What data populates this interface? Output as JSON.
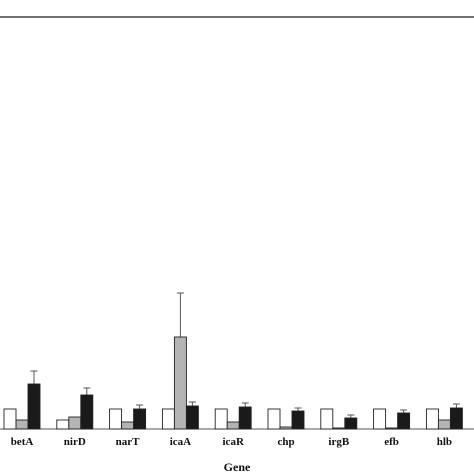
{
  "chart_data": {
    "type": "bar",
    "categories": [
      "betA",
      "nirD",
      "narT",
      "icaA",
      "icaR",
      "chp",
      "irgB",
      "efb",
      "hlb"
    ],
    "xlabel": "Gene",
    "ylabel": "",
    "ylim": [
      0,
      20
    ],
    "grid": false,
    "legend": false,
    "series": [
      {
        "values": [
          1.0,
          0.45,
          1.0,
          1.0,
          1.0,
          1.0,
          1.0,
          1.0,
          1.0
        ],
        "errors": [
          0,
          0,
          0,
          0,
          0,
          0,
          0,
          0,
          0
        ],
        "color": "#ffffff"
      },
      {
        "values": [
          0.45,
          0.6,
          0.35,
          4.6,
          0.35,
          0.1,
          0.05,
          0.05,
          0.45
        ],
        "errors": [
          0,
          0,
          0,
          2.2,
          0,
          0,
          0,
          0,
          0
        ],
        "color": "#b4b4b4"
      },
      {
        "values": [
          2.25,
          1.7,
          1.0,
          1.15,
          1.1,
          0.9,
          0.55,
          0.8,
          1.05
        ],
        "errors": [
          0.65,
          0.35,
          0.2,
          0.2,
          0.2,
          0.15,
          0.15,
          0.15,
          0.2
        ],
        "color": "#1a1a1a"
      }
    ]
  }
}
